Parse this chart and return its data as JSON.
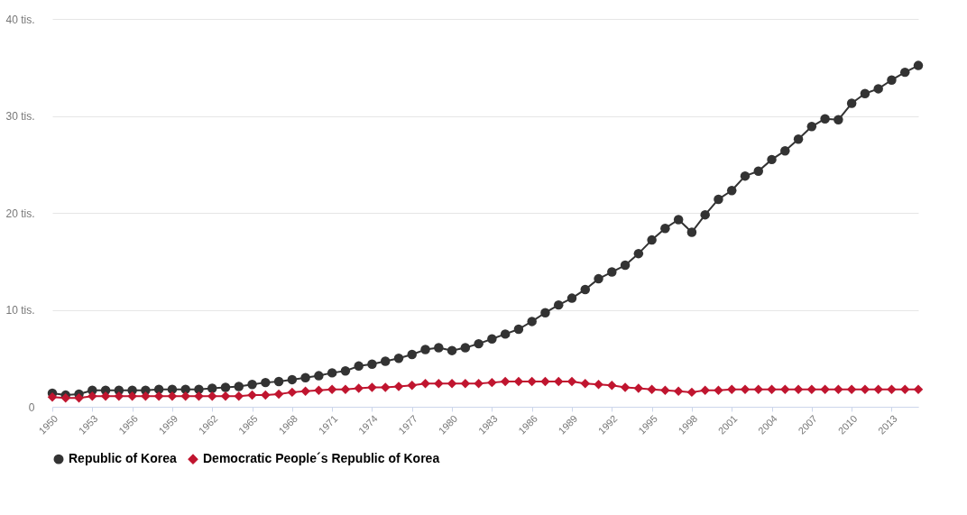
{
  "chart_data": {
    "type": "line",
    "x": [
      1950,
      1951,
      1952,
      1953,
      1954,
      1955,
      1956,
      1957,
      1958,
      1959,
      1960,
      1961,
      1962,
      1963,
      1964,
      1965,
      1966,
      1967,
      1968,
      1969,
      1970,
      1971,
      1972,
      1973,
      1974,
      1975,
      1976,
      1977,
      1978,
      1979,
      1980,
      1981,
      1982,
      1983,
      1984,
      1985,
      1986,
      1987,
      1988,
      1989,
      1990,
      1991,
      1992,
      1993,
      1994,
      1995,
      1996,
      1997,
      1998,
      1999,
      2000,
      2001,
      2002,
      2003,
      2004,
      2005,
      2006,
      2007,
      2008,
      2009,
      2010,
      2011,
      2012,
      2013,
      2014,
      2015
    ],
    "series": [
      {
        "name": "Republic of Korea",
        "color": "#333333",
        "marker": "circle",
        "values": [
          1.4,
          1.2,
          1.3,
          1.7,
          1.7,
          1.7,
          1.7,
          1.7,
          1.8,
          1.8,
          1.8,
          1.8,
          1.9,
          2.0,
          2.1,
          2.3,
          2.5,
          2.6,
          2.8,
          3.0,
          3.2,
          3.5,
          3.7,
          4.2,
          4.4,
          4.7,
          5.0,
          5.4,
          5.9,
          6.1,
          5.8,
          6.1,
          6.5,
          7.0,
          7.5,
          8.0,
          8.8,
          9.7,
          10.5,
          11.2,
          12.1,
          13.2,
          13.9,
          14.6,
          15.8,
          17.2,
          18.4,
          19.3,
          18.0,
          19.8,
          21.4,
          22.3,
          23.8,
          24.3,
          25.5,
          26.4,
          27.6,
          28.9,
          29.7,
          29.6,
          31.3,
          32.3,
          32.8,
          33.7,
          34.5,
          35.2
        ]
      },
      {
        "name": "Democratic People´s Republic of Korea",
        "color": "#c0152f",
        "marker": "diamond",
        "values": [
          1.0,
          0.9,
          0.9,
          1.1,
          1.1,
          1.1,
          1.1,
          1.1,
          1.1,
          1.1,
          1.1,
          1.1,
          1.1,
          1.1,
          1.1,
          1.2,
          1.2,
          1.3,
          1.5,
          1.6,
          1.7,
          1.8,
          1.8,
          1.9,
          2.0,
          2.0,
          2.1,
          2.2,
          2.4,
          2.4,
          2.4,
          2.4,
          2.4,
          2.5,
          2.6,
          2.6,
          2.6,
          2.6,
          2.6,
          2.6,
          2.4,
          2.3,
          2.2,
          2.0,
          1.9,
          1.8,
          1.7,
          1.6,
          1.5,
          1.7,
          1.7,
          1.8,
          1.8,
          1.8,
          1.8,
          1.8,
          1.8,
          1.8,
          1.8,
          1.8,
          1.8,
          1.8,
          1.8,
          1.8,
          1.8,
          1.8
        ]
      }
    ],
    "xlim": [
      1950,
      2015
    ],
    "xticks": [
      1950,
      1953,
      1956,
      1959,
      1962,
      1965,
      1968,
      1971,
      1974,
      1977,
      1980,
      1983,
      1986,
      1989,
      1992,
      1995,
      1998,
      2001,
      2004,
      2007,
      2010,
      2013
    ],
    "ylim": [
      0,
      40
    ],
    "yticks": [
      0,
      {
        "value": 10,
        "label": "10 tis."
      },
      {
        "value": 20,
        "label": "20 tis."
      },
      {
        "value": 30,
        "label": "30 tis."
      },
      {
        "value": 40,
        "label": "40 tis."
      }
    ],
    "grid": "y",
    "legend": "bottom",
    "line_style": "solid"
  }
}
